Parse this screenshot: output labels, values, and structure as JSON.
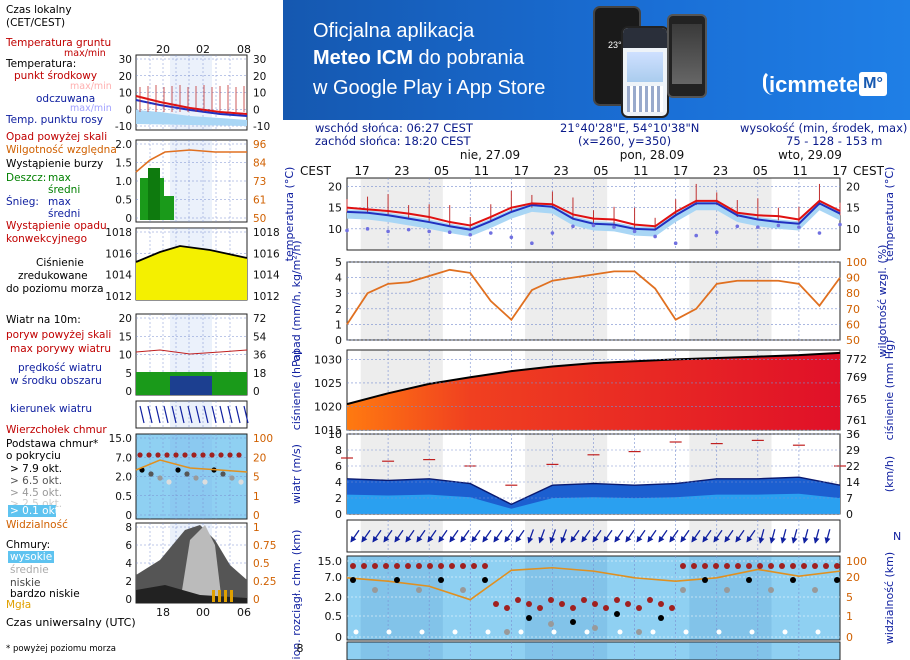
{
  "banner": {
    "line1": "Oficjalna aplikacja",
    "line2_bold": "Meteo ICM",
    "line2_rest": " do pobrania",
    "line3": "w Google Play i App Store",
    "logo_text": "icmmeteo",
    "logo_badge": "M°",
    "phone_time": "23°"
  },
  "info": {
    "sunrise": "wschód słońca: 06:27 CEST",
    "sunset": "zachód słońca: 18:20 CEST",
    "coords": "21°40'28\"E, 54°10'38\"N",
    "grid": "(x=260,  y=350)",
    "height_label": "wysokość (min, środek, max)",
    "height_values": "75 - 128 - 153 m"
  },
  "legend": {
    "czas_lokalny": "Czas lokalny",
    "cet": "(CET/CEST)",
    "temp_gruntu": "Temperatura gruntu",
    "max_min": "max/min",
    "temperatura": "Temperatura:",
    "punkt_srodkowy": "punkt środkowy",
    "max_min2": "max/min",
    "odczuwana": "odczuwana",
    "max_min3": "max/min",
    "punkt_rosy": "Temp. punktu rosy",
    "opad_powyzej": "Opad powyżej skali",
    "wilgotnosc": "Wilgotność względna",
    "burza": "Wystąpienie burzy",
    "deszcz": "Deszcz:",
    "max": "max",
    "sredni": "średni",
    "snieg": "Śnieg:",
    "max2": "max",
    "sredni2": "średni",
    "wyst_opadu1": "Wystąpienie opadu",
    "wyst_opadu2": "konwekcyjnego",
    "cisnienie1": "Ciśnienie",
    "cisnienie2": "zredukowane",
    "cisnienie3": "do poziomu morza",
    "wiatr": "Wiatr na 10m:",
    "poryw": "poryw powyżej skali",
    "max_porywy": "max porywy wiatru",
    "predkosc1": "prędkość wiatru",
    "predkosc2": "w środku obszaru",
    "kierunek": "kierunek wiatru",
    "wierzcholek": "Wierzchołek chmur",
    "podstawa1": "Podstawa chmur*",
    "podstawa2": "o pokryciu",
    "okt79": "> 7.9 okt.",
    "okt65": "> 6.5 okt.",
    "okt45": "> 4.5 okt.",
    "okt25": "> 2.5 okt.",
    "okt01": "> 0.1 okt.",
    "widzialnosc": "Widzialność",
    "chmury": "Chmury:",
    "wysokie": "wysokie",
    "srednie": "średnie",
    "niskie": "niskie",
    "bardzo_niskie": "bardzo niskie",
    "mgla": "Mgła",
    "utc": "Czas uniwersalny (UTC)",
    "footnote": "* powyżej poziomu morza"
  },
  "legend_ticks": {
    "top_hours": [
      "20",
      "02",
      "08"
    ],
    "bottom_hours": [
      "18",
      "00",
      "06"
    ],
    "temp_left": [
      "30",
      "20",
      "10",
      "0",
      "-10"
    ],
    "temp_right": [
      "30",
      "20",
      "10",
      "0",
      "-10"
    ],
    "precip_left": [
      "2.0",
      "1.5",
      "1.0",
      "0.5",
      "0"
    ],
    "precip_right": [
      "96",
      "84",
      "73",
      "61",
      "50"
    ],
    "press_left": [
      "1018",
      "1016",
      "1014",
      "1012"
    ],
    "press_right": [
      "1018",
      "1016",
      "1014",
      "1012"
    ],
    "wind_left": [
      "20",
      "15",
      "10",
      "5",
      "0"
    ],
    "wind_right": [
      "72",
      "54",
      "36",
      "18",
      "0"
    ],
    "cloud_left": [
      "15.0",
      "7.0",
      "2.0",
      "0.5",
      "0"
    ],
    "cloud_right": [
      "100",
      "20",
      "5",
      "1",
      "0"
    ],
    "cl_left": [
      "8",
      "6",
      "4",
      "2",
      "0"
    ],
    "cl_right": [
      "1",
      "0.75",
      "0.5",
      "0.25",
      "0"
    ]
  },
  "chart_data": {
    "type": "line",
    "time_label": "CEST",
    "day_labels": [
      "nie, 27.09",
      "pon, 28.09",
      "wto, 29.09"
    ],
    "hour_ticks": [
      "17",
      "23",
      "05",
      "11",
      "17",
      "23",
      "05",
      "11",
      "17",
      "23",
      "05",
      "11",
      "17"
    ],
    "panels": {
      "temperature": {
        "ylabel": "temperatura (°C)",
        "yticks": [
          20,
          15,
          10
        ],
        "ylim": [
          5,
          22
        ],
        "x_hours": [
          0,
          3,
          6,
          9,
          12,
          15,
          18,
          21,
          24,
          27,
          30,
          33,
          36,
          39,
          42,
          45,
          48,
          51,
          54,
          57,
          60,
          63,
          66,
          69,
          72
        ],
        "main": [
          15,
          14.6,
          14.2,
          13.6,
          12.8,
          11.6,
          10.8,
          12.8,
          15,
          16,
          15.8,
          13.4,
          12.4,
          12.2,
          11,
          10.6,
          14,
          16.6,
          16.6,
          13.8,
          13.2,
          13,
          12.2,
          16.6,
          14.2
        ],
        "felt": [
          14,
          13.8,
          13.2,
          12.4,
          11.6,
          10.6,
          9.8,
          11.8,
          14,
          15.6,
          15.2,
          12.4,
          11.2,
          11,
          10,
          9.8,
          13.2,
          16,
          16,
          13.2,
          12.2,
          11.6,
          11.2,
          16,
          13.6
        ],
        "dew": [
          9.6,
          10,
          9.4,
          9.8,
          9.4,
          9.2,
          8.6,
          9,
          8,
          6.6,
          9,
          10.6,
          10.8,
          10.4,
          9.4,
          8.2,
          6.6,
          8.4,
          9.2,
          10.6,
          10.4,
          10.8,
          10.4,
          9,
          11
        ]
      },
      "precipitation": {
        "ylabel": "opad (mm/h, kg/m²/h)",
        "yticks": [
          5,
          4,
          3,
          2,
          1,
          0
        ],
        "humidity_label": "wilgotność wzgl. (%)",
        "humidity_ticks": [
          100,
          90,
          80,
          70,
          60,
          50
        ],
        "x_hours": [
          0,
          3,
          6,
          9,
          12,
          15,
          18,
          21,
          24,
          27,
          30,
          33,
          36,
          39,
          42,
          45,
          48,
          51,
          54,
          57,
          60,
          63,
          66,
          69,
          72
        ],
        "humidity": [
          60,
          80,
          86,
          87,
          91,
          95,
          93,
          75,
          63,
          82,
          88,
          90,
          92,
          94,
          94,
          83,
          63,
          70,
          86,
          88,
          88,
          88,
          86,
          72,
          90
        ]
      },
      "pressure": {
        "ylabel": "ciśnienie (hPa)",
        "yticks": [
          1030,
          1025,
          1020,
          1015
        ],
        "mmhg_label": "ciśnienie (mm Hg)",
        "mmhg_ticks": [
          772,
          769,
          765,
          761
        ],
        "x_hours": [
          0,
          6,
          12,
          18,
          24,
          30,
          36,
          42,
          48,
          54,
          60,
          66,
          72
        ],
        "values": [
          1020.5,
          1022.8,
          1024.8,
          1026.2,
          1027.5,
          1028.5,
          1029.2,
          1029.6,
          1030,
          1030.3,
          1030.6,
          1030.9,
          1031.4
        ]
      },
      "wind": {
        "ylabel": "wiatr (m/s)",
        "yticks": [
          10,
          8,
          6,
          4,
          2,
          0
        ],
        "kmh_label": "(km/h)",
        "kmh_ticks": [
          36,
          29,
          22,
          14,
          7,
          0
        ],
        "x_hours": [
          0,
          6,
          12,
          18,
          24,
          30,
          36,
          42,
          48,
          54,
          60,
          66,
          72
        ],
        "speed": [
          4.4,
          4.2,
          4.4,
          3.8,
          1.2,
          3.6,
          3.8,
          3.6,
          3.8,
          4.4,
          4.4,
          4.6,
          3.6
        ],
        "gusts": [
          7,
          6.6,
          6.8,
          6,
          3.6,
          6.2,
          7.4,
          7.8,
          9,
          8.8,
          9.2,
          8.6,
          6
        ]
      },
      "clouds": {
        "ylabel": "pion. rozciągł. chm. (km)",
        "yticks": [
          "15.0",
          "7.0",
          "2.0",
          "0.5",
          "0"
        ],
        "vis_label": "widzialność (km)",
        "vis_ticks": [
          "100",
          "20",
          "5",
          "1",
          "0"
        ],
        "x_hours": [
          0,
          6,
          12,
          18,
          24,
          30,
          36,
          42,
          48,
          54,
          60,
          66,
          72
        ],
        "visibility": [
          0.74,
          0.7,
          0.64,
          0.48,
          0.83,
          0.86,
          0.82,
          0.74,
          0.7,
          0.74,
          0.84,
          0.76,
          0.82
        ]
      }
    }
  }
}
